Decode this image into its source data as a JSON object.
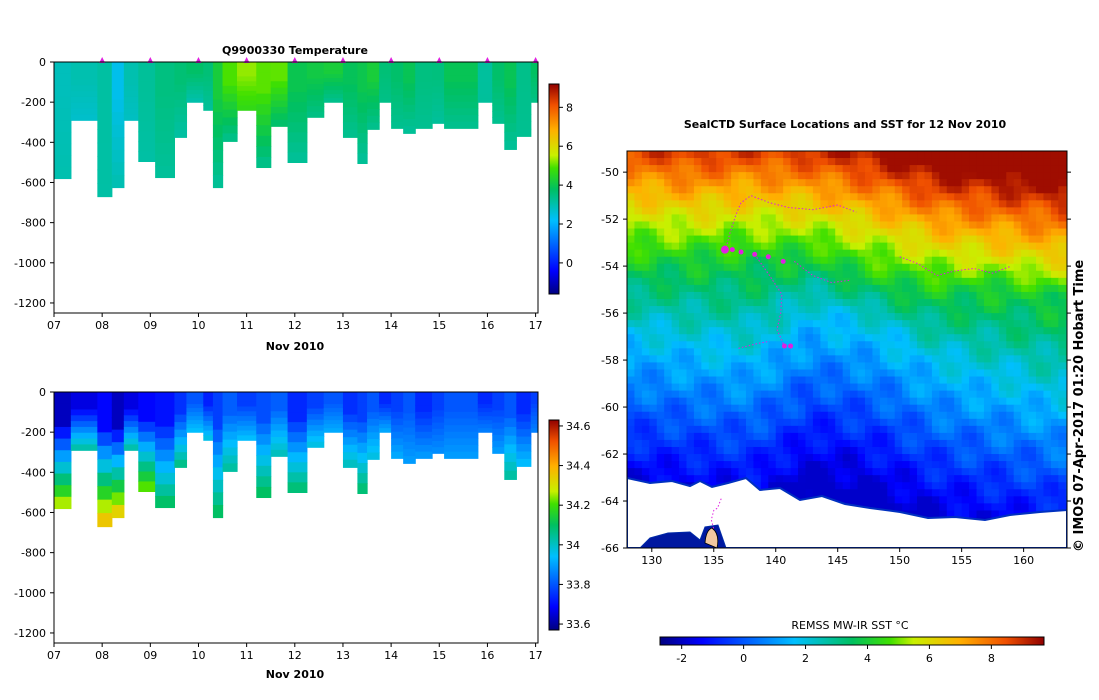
{
  "colors": {
    "seal_track": "#e01fe0",
    "land": "#ffffff",
    "axis": "#000000"
  },
  "chart_data": [
    {
      "id": "temperature",
      "type": "heatmap",
      "title": "Q9900330  Temperature",
      "xlabel": "Nov 2010",
      "ylabel": "",
      "x_ticks": [
        "07",
        "08",
        "09",
        "10",
        "11",
        "12",
        "13",
        "14",
        "15",
        "16",
        "17"
      ],
      "y_ticks": [
        "0",
        "-200",
        "-400",
        "-600",
        "-800",
        "-1000",
        "-1200"
      ],
      "xlim": [
        7,
        17.05
      ],
      "ylim": [
        -1250,
        0
      ],
      "colorbar": {
        "ticks": [
          "0",
          "2",
          "4",
          "6",
          "8"
        ],
        "range": [
          -1.6,
          9.2
        ]
      },
      "profile_markers_day": [
        8,
        9,
        10,
        11,
        12,
        13,
        14,
        15,
        16,
        17
      ],
      "profiles": [
        {
          "x0": 7.0,
          "x1": 7.35,
          "depth": 580,
          "surface": 3.2,
          "deep": 3.0
        },
        {
          "x0": 7.35,
          "x1": 7.9,
          "depth": 290,
          "surface": 3.0,
          "deep": 2.7
        },
        {
          "x0": 7.9,
          "x1": 8.2,
          "depth": 670,
          "surface": 2.8,
          "deep": 3.1
        },
        {
          "x0": 8.2,
          "x1": 8.45,
          "depth": 625,
          "surface": 2.7,
          "deep": 3.0
        },
        {
          "x0": 8.45,
          "x1": 8.75,
          "depth": 290,
          "surface": 3.0,
          "deep": 2.8
        },
        {
          "x0": 8.75,
          "x1": 9.1,
          "depth": 495,
          "surface": 2.9,
          "deep": 3.1
        },
        {
          "x0": 9.1,
          "x1": 9.5,
          "depth": 575,
          "surface": 3.8,
          "deep": 3.2
        },
        {
          "x0": 9.5,
          "x1": 9.75,
          "depth": 375,
          "surface": 3.6,
          "deep": 3.1
        },
        {
          "x0": 9.75,
          "x1": 10.1,
          "depth": 200,
          "surface": 3.4,
          "deep": 3.0
        },
        {
          "x0": 10.1,
          "x1": 10.3,
          "depth": 240,
          "surface": 3.9,
          "deep": 3.2
        },
        {
          "x0": 10.3,
          "x1": 10.5,
          "depth": 625,
          "surface": 4.2,
          "deep": 3.2
        },
        {
          "x0": 10.5,
          "x1": 10.8,
          "depth": 395,
          "surface": 4.6,
          "deep": 3.3
        },
        {
          "x0": 10.8,
          "x1": 11.2,
          "depth": 240,
          "surface": 5.6,
          "deep": 4.6
        },
        {
          "x0": 11.2,
          "x1": 11.5,
          "depth": 525,
          "surface": 5.0,
          "deep": 3.3
        },
        {
          "x0": 11.5,
          "x1": 11.85,
          "depth": 320,
          "surface": 4.7,
          "deep": 3.6
        },
        {
          "x0": 11.85,
          "x1": 12.25,
          "depth": 500,
          "surface": 4.3,
          "deep": 3.2
        },
        {
          "x0": 12.25,
          "x1": 12.6,
          "depth": 275,
          "surface": 4.1,
          "deep": 3.4
        },
        {
          "x0": 12.6,
          "x1": 13.0,
          "depth": 200,
          "surface": 3.9,
          "deep": 3.3
        },
        {
          "x0": 13.0,
          "x1": 13.3,
          "depth": 375,
          "surface": 4.2,
          "deep": 3.3
        },
        {
          "x0": 13.3,
          "x1": 13.5,
          "depth": 505,
          "surface": 4.0,
          "deep": 3.2
        },
        {
          "x0": 13.5,
          "x1": 13.75,
          "depth": 335,
          "surface": 3.9,
          "deep": 3.3
        },
        {
          "x0": 13.75,
          "x1": 14.0,
          "depth": 200,
          "surface": 3.9,
          "deep": 3.4
        },
        {
          "x0": 14.0,
          "x1": 14.25,
          "depth": 330,
          "surface": 3.7,
          "deep": 3.3
        },
        {
          "x0": 14.25,
          "x1": 14.5,
          "depth": 355,
          "surface": 3.6,
          "deep": 3.2
        },
        {
          "x0": 14.5,
          "x1": 14.85,
          "depth": 330,
          "surface": 3.8,
          "deep": 3.3
        },
        {
          "x0": 14.85,
          "x1": 15.1,
          "depth": 305,
          "surface": 3.5,
          "deep": 3.2
        },
        {
          "x0": 15.1,
          "x1": 15.8,
          "depth": 330,
          "surface": 3.6,
          "deep": 3.3
        },
        {
          "x0": 15.8,
          "x1": 16.1,
          "depth": 200,
          "surface": 3.5,
          "deep": 3.2
        },
        {
          "x0": 16.1,
          "x1": 16.35,
          "depth": 305,
          "surface": 3.7,
          "deep": 3.3
        },
        {
          "x0": 16.35,
          "x1": 16.6,
          "depth": 435,
          "surface": 3.6,
          "deep": 3.2
        },
        {
          "x0": 16.6,
          "x1": 16.9,
          "depth": 370,
          "surface": 3.7,
          "deep": 3.3
        },
        {
          "x0": 16.9,
          "x1": 17.05,
          "depth": 200,
          "surface": 3.8,
          "deep": 3.4
        }
      ]
    },
    {
      "id": "salinity",
      "type": "heatmap",
      "title": "",
      "xlabel": "Nov 2010",
      "ylabel": "",
      "x_ticks": [
        "07",
        "08",
        "09",
        "10",
        "11",
        "12",
        "13",
        "14",
        "15",
        "16",
        "17"
      ],
      "y_ticks": [
        "0",
        "-200",
        "-400",
        "-600",
        "-800",
        "-1000",
        "-1200"
      ],
      "xlim": [
        7,
        17.05
      ],
      "ylim": [
        -1250,
        0
      ],
      "colorbar": {
        "ticks": [
          "33.6",
          "33.8",
          "34",
          "34.2",
          "34.4",
          "34.6"
        ],
        "range": [
          33.57,
          34.63
        ]
      },
      "profiles": [
        {
          "x0": 7.0,
          "x1": 7.35,
          "depth": 580,
          "surface": 33.66,
          "deep": 34.3
        },
        {
          "x0": 7.35,
          "x1": 7.9,
          "depth": 290,
          "surface": 33.66,
          "deep": 34.05
        },
        {
          "x0": 7.9,
          "x1": 8.2,
          "depth": 670,
          "surface": 33.66,
          "deep": 34.4
        },
        {
          "x0": 8.2,
          "x1": 8.45,
          "depth": 625,
          "surface": 33.66,
          "deep": 34.38
        },
        {
          "x0": 8.45,
          "x1": 8.75,
          "depth": 290,
          "surface": 33.66,
          "deep": 34.05
        },
        {
          "x0": 8.75,
          "x1": 9.1,
          "depth": 495,
          "surface": 33.66,
          "deep": 34.25
        },
        {
          "x0": 9.1,
          "x1": 9.5,
          "depth": 575,
          "surface": 33.74,
          "deep": 34.12
        },
        {
          "x0": 9.5,
          "x1": 9.75,
          "depth": 375,
          "surface": 33.75,
          "deep": 34.08
        },
        {
          "x0": 9.75,
          "x1": 10.1,
          "depth": 200,
          "surface": 33.77,
          "deep": 33.95
        },
        {
          "x0": 10.1,
          "x1": 10.3,
          "depth": 240,
          "surface": 33.76,
          "deep": 33.98
        },
        {
          "x0": 10.3,
          "x1": 10.5,
          "depth": 625,
          "surface": 33.77,
          "deep": 34.12
        },
        {
          "x0": 10.5,
          "x1": 10.8,
          "depth": 395,
          "surface": 33.78,
          "deep": 34.05
        },
        {
          "x0": 10.8,
          "x1": 11.2,
          "depth": 240,
          "surface": 33.8,
          "deep": 33.95
        },
        {
          "x0": 11.2,
          "x1": 11.5,
          "depth": 525,
          "surface": 33.79,
          "deep": 34.12
        },
        {
          "x0": 11.5,
          "x1": 11.85,
          "depth": 320,
          "surface": 33.78,
          "deep": 34.02
        },
        {
          "x0": 11.85,
          "x1": 12.25,
          "depth": 500,
          "surface": 33.77,
          "deep": 34.1
        },
        {
          "x0": 12.25,
          "x1": 12.6,
          "depth": 275,
          "surface": 33.77,
          "deep": 33.98
        },
        {
          "x0": 12.6,
          "x1": 13.0,
          "depth": 200,
          "surface": 33.77,
          "deep": 33.92
        },
        {
          "x0": 13.0,
          "x1": 13.3,
          "depth": 375,
          "surface": 33.78,
          "deep": 34.02
        },
        {
          "x0": 13.3,
          "x1": 13.5,
          "depth": 505,
          "surface": 33.77,
          "deep": 34.1
        },
        {
          "x0": 13.5,
          "x1": 13.75,
          "depth": 335,
          "surface": 33.77,
          "deep": 33.98
        },
        {
          "x0": 13.75,
          "x1": 14.0,
          "depth": 200,
          "surface": 33.77,
          "deep": 33.92
        },
        {
          "x0": 14.0,
          "x1": 14.25,
          "depth": 330,
          "surface": 33.77,
          "deep": 33.92
        },
        {
          "x0": 14.25,
          "x1": 14.5,
          "depth": 355,
          "surface": 33.77,
          "deep": 33.9
        },
        {
          "x0": 14.5,
          "x1": 14.85,
          "depth": 330,
          "surface": 33.77,
          "deep": 33.9
        },
        {
          "x0": 14.85,
          "x1": 15.1,
          "depth": 305,
          "surface": 33.77,
          "deep": 33.88
        },
        {
          "x0": 15.1,
          "x1": 15.8,
          "depth": 330,
          "surface": 33.77,
          "deep": 33.9
        },
        {
          "x0": 15.8,
          "x1": 16.1,
          "depth": 200,
          "surface": 33.77,
          "deep": 33.86
        },
        {
          "x0": 16.1,
          "x1": 16.35,
          "depth": 305,
          "surface": 33.77,
          "deep": 33.9
        },
        {
          "x0": 16.35,
          "x1": 16.6,
          "depth": 435,
          "surface": 33.77,
          "deep": 34.05
        },
        {
          "x0": 16.6,
          "x1": 16.9,
          "depth": 370,
          "surface": 33.77,
          "deep": 33.95
        },
        {
          "x0": 16.9,
          "x1": 17.05,
          "depth": 200,
          "surface": 33.77,
          "deep": 33.86
        }
      ]
    },
    {
      "id": "sst_map",
      "type": "heatmap",
      "title": "SealCTD Surface Locations and SST for 12 Nov 2010",
      "xlabel": "",
      "ylabel": "",
      "x_ticks": [
        "130",
        "135",
        "140",
        "145",
        "150",
        "155",
        "160"
      ],
      "y_ticks": [
        "-50",
        "-52",
        "-54",
        "-56",
        "-58",
        "-60",
        "-62",
        "-64",
        "-66"
      ],
      "xlim": [
        128,
        163.5
      ],
      "ylim": [
        -66,
        -49.1
      ],
      "colorbar": {
        "label": "REMSS MW-IR SST °C",
        "ticks": [
          "-2",
          "0",
          "2",
          "4",
          "6",
          "8"
        ],
        "range": [
          -2.7,
          9.7
        ]
      },
      "credit": "© IMOS 07-Apr-2017 01:20 Hobart Time",
      "sst_front_lat": [
        {
          "lon": 128,
          "t6": -51.5,
          "t4": -53.9,
          "t2": -56.6
        },
        {
          "lon": 133,
          "t6": -51.8,
          "t4": -53.8,
          "t2": -57.0
        },
        {
          "lon": 138,
          "t6": -51.6,
          "t4": -53.7,
          "t2": -57.3
        },
        {
          "lon": 143,
          "t6": -51.8,
          "t4": -53.7,
          "t2": -55.7
        },
        {
          "lon": 148,
          "t6": -52.4,
          "t4": -54.6,
          "t2": -56.4
        },
        {
          "lon": 153,
          "t6": -53.2,
          "t4": -55.1,
          "t2": -57.8
        },
        {
          "lon": 158,
          "t6": -53.5,
          "t4": -55.0,
          "t2": -58.5
        },
        {
          "lon": 163.5,
          "t6": -53.9,
          "t4": -55.4,
          "t2": -59.3
        }
      ],
      "seal_surface_positions": [
        {
          "lon": 135.9,
          "lat": -53.3
        },
        {
          "lon": 136.5,
          "lat": -53.3
        },
        {
          "lon": 137.2,
          "lat": -53.4
        },
        {
          "lon": 138.3,
          "lat": -53.5
        },
        {
          "lon": 139.4,
          "lat": -53.6
        },
        {
          "lon": 140.6,
          "lat": -53.8
        },
        {
          "lon": 140.7,
          "lat": -57.4
        },
        {
          "lon": 141.2,
          "lat": -57.4
        }
      ],
      "seal_tracks": [
        [
          {
            "lon": 136.0,
            "lat": -53.2
          },
          {
            "lon": 136.3,
            "lat": -52.6
          },
          {
            "lon": 136.8,
            "lat": -51.8
          },
          {
            "lon": 137.2,
            "lat": -51.3
          },
          {
            "lon": 138.0,
            "lat": -51.0
          },
          {
            "lon": 139.5,
            "lat": -51.3
          },
          {
            "lon": 141.0,
            "lat": -51.5
          },
          {
            "lon": 143.0,
            "lat": -51.6
          },
          {
            "lon": 145.0,
            "lat": -51.4
          },
          {
            "lon": 146.5,
            "lat": -51.7
          }
        ],
        [
          {
            "lon": 138.3,
            "lat": -53.5
          },
          {
            "lon": 139.5,
            "lat": -54.4
          },
          {
            "lon": 140.5,
            "lat": -55.2
          },
          {
            "lon": 140.4,
            "lat": -56.0
          },
          {
            "lon": 140.1,
            "lat": -56.7
          },
          {
            "lon": 140.6,
            "lat": -57.3
          },
          {
            "lon": 141.3,
            "lat": -57.5
          }
        ],
        [
          {
            "lon": 141.5,
            "lat": -53.8
          },
          {
            "lon": 143.0,
            "lat": -54.4
          },
          {
            "lon": 144.5,
            "lat": -54.7
          },
          {
            "lon": 146.0,
            "lat": -54.6
          }
        ],
        [
          {
            "lon": 150.0,
            "lat": -53.6
          },
          {
            "lon": 151.5,
            "lat": -53.9
          },
          {
            "lon": 153.0,
            "lat": -54.4
          },
          {
            "lon": 154.5,
            "lat": -54.2
          },
          {
            "lon": 156.0,
            "lat": -54.1
          },
          {
            "lon": 157.5,
            "lat": -54.3
          },
          {
            "lon": 159.0,
            "lat": -54.0
          }
        ],
        [
          {
            "lon": 137.0,
            "lat": -57.5
          },
          {
            "lon": 138.5,
            "lat": -57.3
          },
          {
            "lon": 139.5,
            "lat": -57.2
          }
        ],
        [
          {
            "lon": 135.6,
            "lat": -63.9
          },
          {
            "lon": 135.3,
            "lat": -64.3
          },
          {
            "lon": 135.0,
            "lat": -64.4
          },
          {
            "lon": 134.8,
            "lat": -64.8
          },
          {
            "lon": 135.0,
            "lat": -65.2
          }
        ]
      ]
    }
  ]
}
